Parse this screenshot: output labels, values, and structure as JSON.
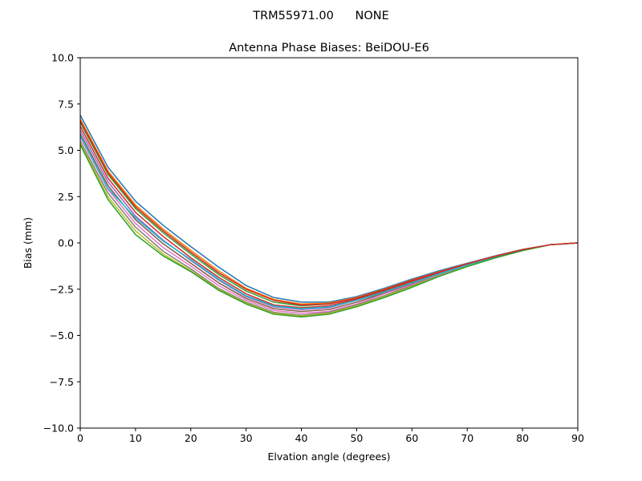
{
  "figure": {
    "suptitle_left": "TRM55971.00",
    "suptitle_right": "NONE"
  },
  "chart_data": {
    "type": "line",
    "title": "Antenna Phase Biases: BeiDOU-E6",
    "xlabel": "Elvation angle (degrees)",
    "ylabel": "Bias (mm)",
    "xlim": [
      0,
      90
    ],
    "ylim": [
      -10,
      10
    ],
    "x_ticks": [
      "0",
      "10",
      "20",
      "30",
      "40",
      "50",
      "60",
      "70",
      "80",
      "90"
    ],
    "y_ticks": [
      "10.0",
      "7.5",
      "5.0",
      "2.5",
      "0.0",
      "−2.5",
      "−5.0",
      "−7.5",
      "−10.0"
    ],
    "grid": false,
    "legend": "none",
    "x": [
      0,
      5,
      10,
      15,
      20,
      25,
      30,
      35,
      40,
      45,
      50,
      55,
      60,
      65,
      70,
      75,
      80,
      85,
      90
    ],
    "series": [
      {
        "color": "#1f77b4",
        "values": [
          6.9,
          4.1,
          2.25,
          0.95,
          -0.2,
          -1.3,
          -2.3,
          -2.95,
          -3.2,
          -3.2,
          -2.9,
          -2.45,
          -1.95,
          -1.5,
          -1.1,
          -0.7,
          -0.35,
          -0.1,
          0.0
        ]
      },
      {
        "color": "#ff7f0e",
        "values": [
          6.7,
          3.9,
          2.05,
          0.75,
          -0.4,
          -1.5,
          -2.45,
          -3.05,
          -3.3,
          -3.25,
          -2.95,
          -2.5,
          -2.0,
          -1.55,
          -1.12,
          -0.72,
          -0.36,
          -0.1,
          0.0
        ]
      },
      {
        "color": "#2ca02c",
        "values": [
          6.5,
          3.7,
          1.85,
          0.55,
          -0.6,
          -1.7,
          -2.6,
          -3.2,
          -3.4,
          -3.3,
          -3.0,
          -2.55,
          -2.05,
          -1.6,
          -1.15,
          -0.74,
          -0.37,
          -0.1,
          0.0
        ]
      },
      {
        "color": "#d62728",
        "values": [
          6.3,
          3.5,
          1.65,
          0.35,
          -0.8,
          -1.85,
          -2.75,
          -3.35,
          -3.5,
          -3.4,
          -3.05,
          -2.6,
          -2.1,
          -1.63,
          -1.18,
          -0.76,
          -0.38,
          -0.1,
          0.0
        ]
      },
      {
        "color": "#9467bd",
        "values": [
          6.1,
          3.3,
          1.45,
          0.15,
          -0.95,
          -2.0,
          -2.9,
          -3.45,
          -3.6,
          -3.5,
          -3.1,
          -2.65,
          -2.15,
          -1.67,
          -1.2,
          -0.77,
          -0.39,
          -0.1,
          0.0
        ]
      },
      {
        "color": "#8c564b",
        "values": [
          5.9,
          3.1,
          1.25,
          -0.05,
          -1.1,
          -2.15,
          -3.0,
          -3.55,
          -3.7,
          -3.6,
          -3.2,
          -2.7,
          -2.2,
          -1.7,
          -1.22,
          -0.78,
          -0.4,
          -0.1,
          0.0
        ]
      },
      {
        "color": "#e377c2",
        "values": [
          5.7,
          2.9,
          1.05,
          -0.25,
          -1.25,
          -2.3,
          -3.1,
          -3.65,
          -3.8,
          -3.7,
          -3.3,
          -2.75,
          -2.25,
          -1.73,
          -1.24,
          -0.79,
          -0.4,
          -0.1,
          0.0
        ]
      },
      {
        "color": "#7f7f7f",
        "values": [
          5.5,
          2.7,
          0.85,
          -0.45,
          -1.4,
          -2.45,
          -3.2,
          -3.75,
          -3.9,
          -3.75,
          -3.35,
          -2.85,
          -2.3,
          -1.76,
          -1.26,
          -0.8,
          -0.41,
          -0.1,
          0.0
        ]
      },
      {
        "color": "#bcbd22",
        "values": [
          5.4,
          2.5,
          0.65,
          -0.6,
          -1.5,
          -2.5,
          -3.25,
          -3.8,
          -3.95,
          -3.8,
          -3.4,
          -2.9,
          -2.35,
          -1.78,
          -1.27,
          -0.81,
          -0.41,
          -0.1,
          0.0
        ]
      },
      {
        "color": "#17becf",
        "values": [
          5.8,
          2.95,
          1.35,
          0.1,
          -0.9,
          -1.95,
          -2.85,
          -3.4,
          -3.55,
          -3.45,
          -3.1,
          -2.65,
          -2.15,
          -1.66,
          -1.19,
          -0.77,
          -0.39,
          -0.1,
          0.0
        ]
      },
      {
        "color": "#2ca02c",
        "values": [
          5.3,
          2.35,
          0.45,
          -0.7,
          -1.55,
          -2.55,
          -3.3,
          -3.85,
          -4.0,
          -3.85,
          -3.45,
          -2.95,
          -2.4,
          -1.8,
          -1.28,
          -0.82,
          -0.42,
          -0.1,
          0.0
        ]
      },
      {
        "color": "#d62728",
        "values": [
          6.6,
          3.8,
          1.95,
          0.65,
          -0.5,
          -1.6,
          -2.5,
          -3.1,
          -3.35,
          -3.3,
          -2.98,
          -2.52,
          -2.02,
          -1.57,
          -1.13,
          -0.73,
          -0.36,
          -0.1,
          0.0
        ]
      }
    ]
  }
}
